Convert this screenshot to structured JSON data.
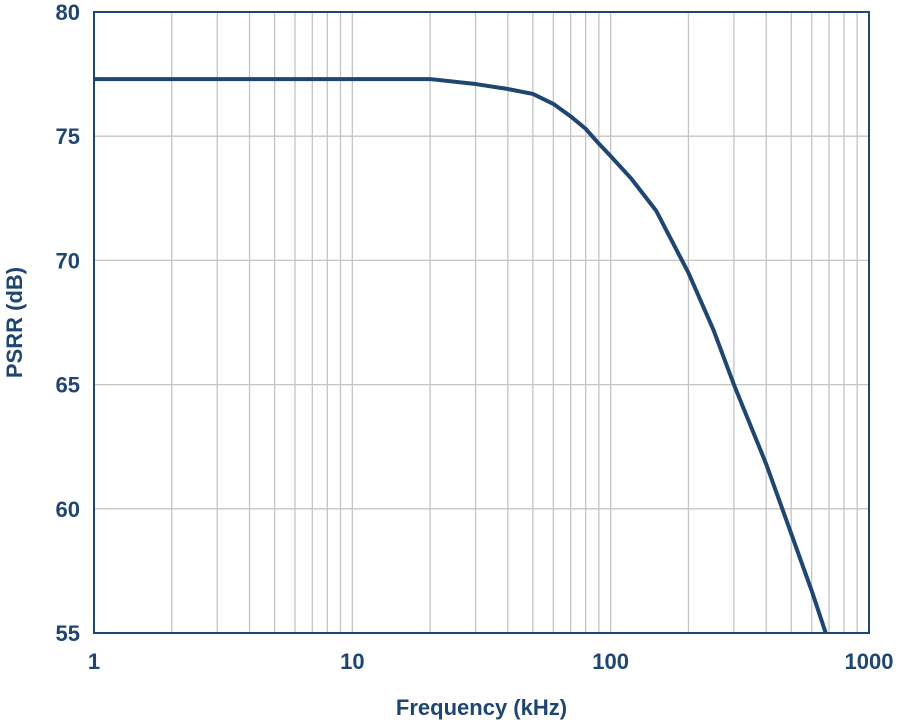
{
  "chart_data": {
    "type": "line",
    "title": "",
    "xlabel": "Frequency (kHz)",
    "ylabel": "PSRR (dB)",
    "xscale": "log",
    "xlim": [
      1,
      1000
    ],
    "ylim": [
      55,
      80
    ],
    "x_ticks": [
      1,
      10,
      100,
      1000
    ],
    "x_tick_labels": [
      "1",
      "10",
      "100",
      "1000"
    ],
    "y_ticks": [
      55,
      60,
      65,
      70,
      75,
      80
    ],
    "y_tick_labels": [
      "55",
      "60",
      "65",
      "70",
      "75",
      "80"
    ],
    "grid": true,
    "legend": "none",
    "series": [
      {
        "x": [
          1,
          2,
          5,
          10,
          20,
          30,
          40,
          50,
          60,
          70,
          80,
          90,
          100,
          120,
          150,
          200,
          250,
          300,
          400,
          500,
          600,
          680
        ],
        "y": [
          77.3,
          77.3,
          77.3,
          77.3,
          77.3,
          77.1,
          76.9,
          76.7,
          76.3,
          75.8,
          75.3,
          74.7,
          74.2,
          73.3,
          72.0,
          69.5,
          67.2,
          65.0,
          61.8,
          59.0,
          56.7,
          55.0
        ]
      }
    ],
    "colors": {
      "line": "#1f4571",
      "axis": "#1f4571",
      "grid": "#c4c4c4",
      "text": "#1f4571"
    }
  }
}
